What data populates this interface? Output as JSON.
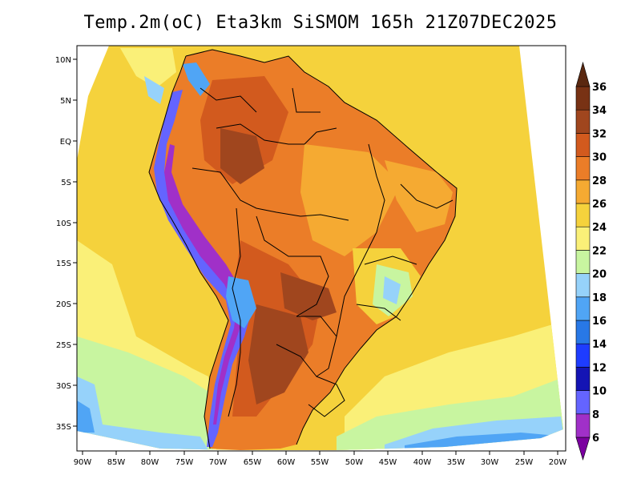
{
  "title": "Temp.2m(oC) Eta3km SiSMOM 165h 21Z07DEC2025",
  "variable": "2 m temperature",
  "units": "oC",
  "lon_labels": [
    "90W",
    "85W",
    "80W",
    "75W",
    "70W",
    "65W",
    "60W",
    "55W",
    "50W",
    "45W",
    "40W",
    "35W",
    "30W",
    "25W",
    "20W"
  ],
  "lat_labels": [
    "10N",
    "5N",
    "EQ",
    "5S",
    "10S",
    "15S",
    "20S",
    "25S",
    "30S",
    "35S"
  ],
  "colorbar": {
    "levels": [
      "6",
      "8",
      "10",
      "12",
      "14",
      "16",
      "18",
      "20",
      "22",
      "24",
      "26",
      "28",
      "30",
      "32",
      "34",
      "36"
    ],
    "colors": [
      "#7b00a0",
      "#a030c8",
      "#6464ff",
      "#1414b4",
      "#1e3cff",
      "#2878e6",
      "#50a5f5",
      "#96d2fa",
      "#c8f5a0",
      "#faf078",
      "#f5d23c",
      "#f5aa32",
      "#eb7d28",
      "#d25a1e",
      "#a0461e",
      "#783214",
      "#5a2810"
    ]
  },
  "colors": {
    "ocean_warm": "#f5d23c",
    "ocean_mild": "#faf078",
    "ocean_cool": "#c8f5a0",
    "coast_cold": "#96d2fa",
    "land_hot": "#eb7d28",
    "land_very_hot": "#a0461e",
    "andes": "#6464ff"
  }
}
